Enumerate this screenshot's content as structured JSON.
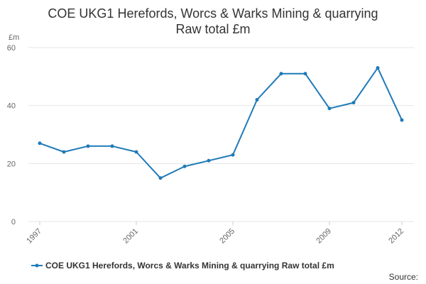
{
  "chart_data": {
    "type": "line",
    "title_lines": [
      "COE UKG1 Herefords, Worcs & Warks Mining & quarrying",
      "Raw total £m"
    ],
    "y_unit_label": "£m",
    "x": [
      1997,
      1998,
      1999,
      2000,
      2001,
      2002,
      2003,
      2004,
      2005,
      2006,
      2007,
      2008,
      2009,
      2010,
      2011,
      2012
    ],
    "x_tick_labels": [
      "1997",
      "2001",
      "2005",
      "2009",
      "2012"
    ],
    "y_ticks": [
      0,
      20,
      40,
      60
    ],
    "ylim": [
      0,
      60
    ],
    "grid": true,
    "legend_position": "bottom",
    "series": [
      {
        "name": "COE UKG1 Herefords, Worcs & Warks Mining & quarrying Raw total £m",
        "color": "#1f7ab8",
        "values": [
          27,
          24,
          26,
          26,
          24,
          15,
          19,
          21,
          23,
          42,
          51,
          51,
          39,
          41,
          53,
          35
        ]
      }
    ]
  },
  "footer": {
    "source": "Source:"
  }
}
